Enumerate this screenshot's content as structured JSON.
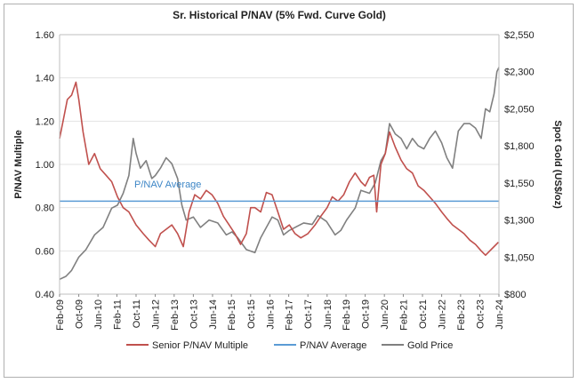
{
  "chart_data": {
    "type": "line",
    "title": "Sr. Historical  P/NAV (5% Fwd. Curve Gold)",
    "xlabel": "",
    "ylabel": "P/NAV Multiple",
    "y2label": "Spot Gold (US$/oz)",
    "ylim": [
      0.4,
      1.6
    ],
    "y2lim": [
      800,
      2550
    ],
    "yticks": [
      "0.40",
      "0.60",
      "0.80",
      "1.00",
      "1.20",
      "1.40",
      "1.60"
    ],
    "y2ticks": [
      "$800",
      "$1,050",
      "$1,300",
      "$1,550",
      "$1,800",
      "$2,050",
      "$2,300",
      "$2,550"
    ],
    "xlim": [
      2009.08,
      2024.42
    ],
    "xticks": [
      {
        "label": "Feb-09",
        "t": 2009.08
      },
      {
        "label": "Oct-09",
        "t": 2009.75
      },
      {
        "label": "Jun-10",
        "t": 2010.42
      },
      {
        "label": "Feb-11",
        "t": 2011.08
      },
      {
        "label": "Oct-11",
        "t": 2011.75
      },
      {
        "label": "Jun-12",
        "t": 2012.42
      },
      {
        "label": "Feb-13",
        "t": 2013.08
      },
      {
        "label": "Oct-13",
        "t": 2013.75
      },
      {
        "label": "Jun-14",
        "t": 2014.42
      },
      {
        "label": "Feb-15",
        "t": 2015.08
      },
      {
        "label": "Oct-15",
        "t": 2015.75
      },
      {
        "label": "Jun-16",
        "t": 2016.42
      },
      {
        "label": "Feb-17",
        "t": 2017.08
      },
      {
        "label": "Oct-17",
        "t": 2017.75
      },
      {
        "label": "Jun-18",
        "t": 2018.42
      },
      {
        "label": "Feb-19",
        "t": 2019.08
      },
      {
        "label": "Oct-19",
        "t": 2019.75
      },
      {
        "label": "Jun-20",
        "t": 2020.42
      },
      {
        "label": "Feb-21",
        "t": 2021.08
      },
      {
        "label": "Oct-21",
        "t": 2021.75
      },
      {
        "label": "Jun-22",
        "t": 2022.42
      },
      {
        "label": "Feb-23",
        "t": 2023.08
      },
      {
        "label": "Oct-23",
        "t": 2023.75
      },
      {
        "label": "Jun-24",
        "t": 2024.42
      }
    ],
    "grid": "horizontal",
    "legend_position": "bottom",
    "annotation": "P/NAV Average",
    "series": [
      {
        "name": "Senior P/NAV Multiple",
        "axis": "left",
        "color": "#c0504d",
        "x": [
          2009.08,
          2009.2,
          2009.35,
          2009.5,
          2009.65,
          2009.75,
          2009.9,
          2010.1,
          2010.3,
          2010.5,
          2010.7,
          2010.9,
          2011.1,
          2011.3,
          2011.5,
          2011.75,
          2012.0,
          2012.2,
          2012.42,
          2012.6,
          2012.8,
          2013.0,
          2013.2,
          2013.4,
          2013.6,
          2013.8,
          2014.0,
          2014.2,
          2014.4,
          2014.6,
          2014.8,
          2015.0,
          2015.2,
          2015.4,
          2015.6,
          2015.75,
          2015.9,
          2016.1,
          2016.3,
          2016.5,
          2016.7,
          2016.9,
          2017.1,
          2017.3,
          2017.5,
          2017.75,
          2018.0,
          2018.2,
          2018.42,
          2018.6,
          2018.8,
          2019.0,
          2019.2,
          2019.4,
          2019.6,
          2019.75,
          2019.9,
          2020.05,
          2020.15,
          2020.3,
          2020.45,
          2020.6,
          2020.8,
          2021.0,
          2021.2,
          2021.4,
          2021.6,
          2021.8,
          2022.0,
          2022.2,
          2022.42,
          2022.6,
          2022.8,
          2023.0,
          2023.2,
          2023.4,
          2023.6,
          2023.8,
          2023.95,
          2024.1,
          2024.25,
          2024.4
        ],
        "values": [
          1.12,
          1.2,
          1.3,
          1.32,
          1.38,
          1.3,
          1.15,
          1.0,
          1.05,
          0.98,
          0.95,
          0.92,
          0.85,
          0.8,
          0.78,
          0.72,
          0.68,
          0.65,
          0.62,
          0.68,
          0.7,
          0.72,
          0.68,
          0.62,
          0.78,
          0.86,
          0.84,
          0.88,
          0.86,
          0.82,
          0.76,
          0.72,
          0.68,
          0.63,
          0.68,
          0.8,
          0.8,
          0.78,
          0.87,
          0.86,
          0.78,
          0.7,
          0.72,
          0.68,
          0.66,
          0.68,
          0.72,
          0.76,
          0.8,
          0.85,
          0.83,
          0.86,
          0.92,
          0.96,
          0.92,
          0.9,
          0.94,
          0.95,
          0.78,
          1.0,
          1.05,
          1.15,
          1.08,
          1.02,
          0.98,
          0.96,
          0.9,
          0.88,
          0.85,
          0.82,
          0.78,
          0.75,
          0.72,
          0.7,
          0.68,
          0.65,
          0.63,
          0.6,
          0.58,
          0.6,
          0.62,
          0.64
        ]
      },
      {
        "name": "P/NAV Average",
        "axis": "left",
        "color": "#5b9bd5",
        "x": [
          2009.08,
          2024.42
        ],
        "values": [
          0.83,
          0.83
        ]
      },
      {
        "name": "Gold Price",
        "axis": "right",
        "color": "#808080",
        "x": [
          2009.08,
          2009.3,
          2009.5,
          2009.75,
          2010.0,
          2010.3,
          2010.6,
          2010.9,
          2011.1,
          2011.3,
          2011.5,
          2011.65,
          2011.75,
          2011.9,
          2012.1,
          2012.3,
          2012.42,
          2012.6,
          2012.8,
          2013.0,
          2013.2,
          2013.35,
          2013.5,
          2013.75,
          2014.0,
          2014.3,
          2014.6,
          2014.9,
          2015.1,
          2015.3,
          2015.6,
          2015.9,
          2016.1,
          2016.3,
          2016.5,
          2016.7,
          2016.9,
          2017.1,
          2017.3,
          2017.6,
          2017.9,
          2018.1,
          2018.4,
          2018.7,
          2018.9,
          2019.1,
          2019.4,
          2019.6,
          2019.9,
          2020.1,
          2020.3,
          2020.45,
          2020.6,
          2020.8,
          2021.0,
          2021.2,
          2021.4,
          2021.6,
          2021.8,
          2022.0,
          2022.2,
          2022.42,
          2022.6,
          2022.8,
          2023.0,
          2023.2,
          2023.4,
          2023.6,
          2023.8,
          2023.95,
          2024.1,
          2024.25,
          2024.35,
          2024.42
        ],
        "values": [
          900,
          920,
          960,
          1050,
          1100,
          1200,
          1250,
          1380,
          1400,
          1480,
          1600,
          1850,
          1750,
          1650,
          1700,
          1580,
          1600,
          1650,
          1720,
          1680,
          1580,
          1400,
          1300,
          1320,
          1250,
          1300,
          1280,
          1200,
          1220,
          1180,
          1100,
          1080,
          1180,
          1250,
          1320,
          1300,
          1200,
          1230,
          1250,
          1280,
          1270,
          1330,
          1290,
          1200,
          1230,
          1300,
          1380,
          1500,
          1480,
          1550,
          1700,
          1750,
          1950,
          1880,
          1850,
          1780,
          1850,
          1800,
          1780,
          1850,
          1900,
          1820,
          1720,
          1650,
          1900,
          1950,
          1950,
          1920,
          1850,
          2050,
          2030,
          2150,
          2300,
          2330
        ]
      }
    ]
  }
}
